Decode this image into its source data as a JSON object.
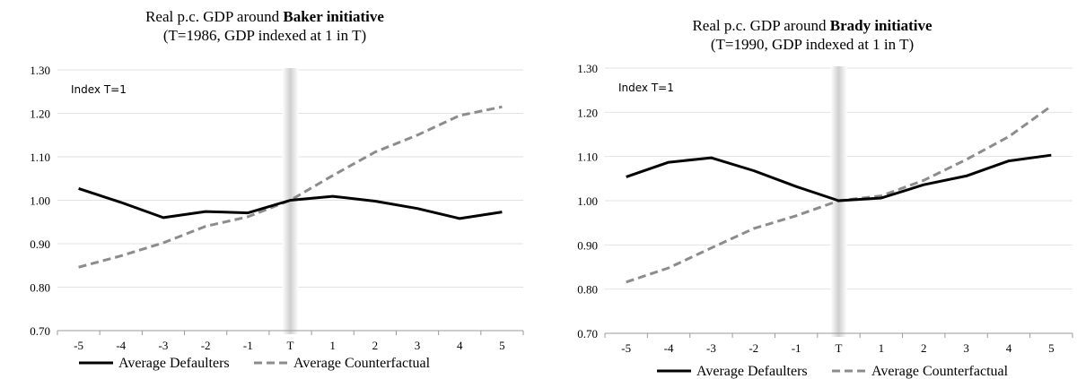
{
  "chart_data": [
    {
      "type": "line",
      "title": {
        "prefix": "Real p.c. GDP around ",
        "emphasis": "Baker initiative",
        "subtitle": "(T=1986, GDP indexed at 1 in T)"
      },
      "annotation": "Index T=1",
      "categories": [
        "-5",
        "-4",
        "-3",
        "-2",
        "-1",
        "T",
        "1",
        "2",
        "3",
        "4",
        "5"
      ],
      "ylim": [
        0.7,
        1.3
      ],
      "yticks": [
        "0.70",
        "0.80",
        "0.90",
        "1.00",
        "1.10",
        "1.20",
        "1.30"
      ],
      "grid": true,
      "legend": "bottom",
      "highlight_category": "T",
      "series": [
        {
          "name": "Average Defaulters",
          "style": "solid",
          "color": "#000000",
          "values": [
            1.027,
            0.995,
            0.96,
            0.974,
            0.971,
            1.0,
            1.009,
            0.998,
            0.981,
            0.958,
            0.973
          ]
        },
        {
          "name": "Average Counterfactual",
          "style": "dashed",
          "color": "#8c8c8c",
          "values": [
            0.846,
            0.872,
            0.902,
            0.94,
            0.962,
            1.0,
            1.057,
            1.111,
            1.15,
            1.195,
            1.215
          ]
        }
      ]
    },
    {
      "type": "line",
      "title": {
        "prefix": "Real p.c. GDP around ",
        "emphasis": "Brady initiative",
        "subtitle": "(T=1990, GDP indexed at 1 in T)"
      },
      "annotation": "Index T=1",
      "categories": [
        "-5",
        "-4",
        "-3",
        "-2",
        "-1",
        "T",
        "1",
        "2",
        "3",
        "4",
        "5"
      ],
      "ylim": [
        0.7,
        1.3
      ],
      "yticks": [
        "0.70",
        "0.80",
        "0.90",
        "1.00",
        "1.10",
        "1.20",
        "1.30"
      ],
      "grid": true,
      "legend": "bottom",
      "highlight_category": "T",
      "series": [
        {
          "name": "Average Defaulters",
          "style": "solid",
          "color": "#000000",
          "values": [
            1.054,
            1.087,
            1.097,
            1.068,
            1.032,
            1.0,
            1.006,
            1.036,
            1.056,
            1.09,
            1.103
          ]
        },
        {
          "name": "Average Counterfactual",
          "style": "dashed",
          "color": "#8c8c8c",
          "values": [
            0.816,
            0.848,
            0.893,
            0.937,
            0.966,
            1.0,
            1.011,
            1.046,
            1.093,
            1.145,
            1.214
          ]
        }
      ]
    }
  ]
}
